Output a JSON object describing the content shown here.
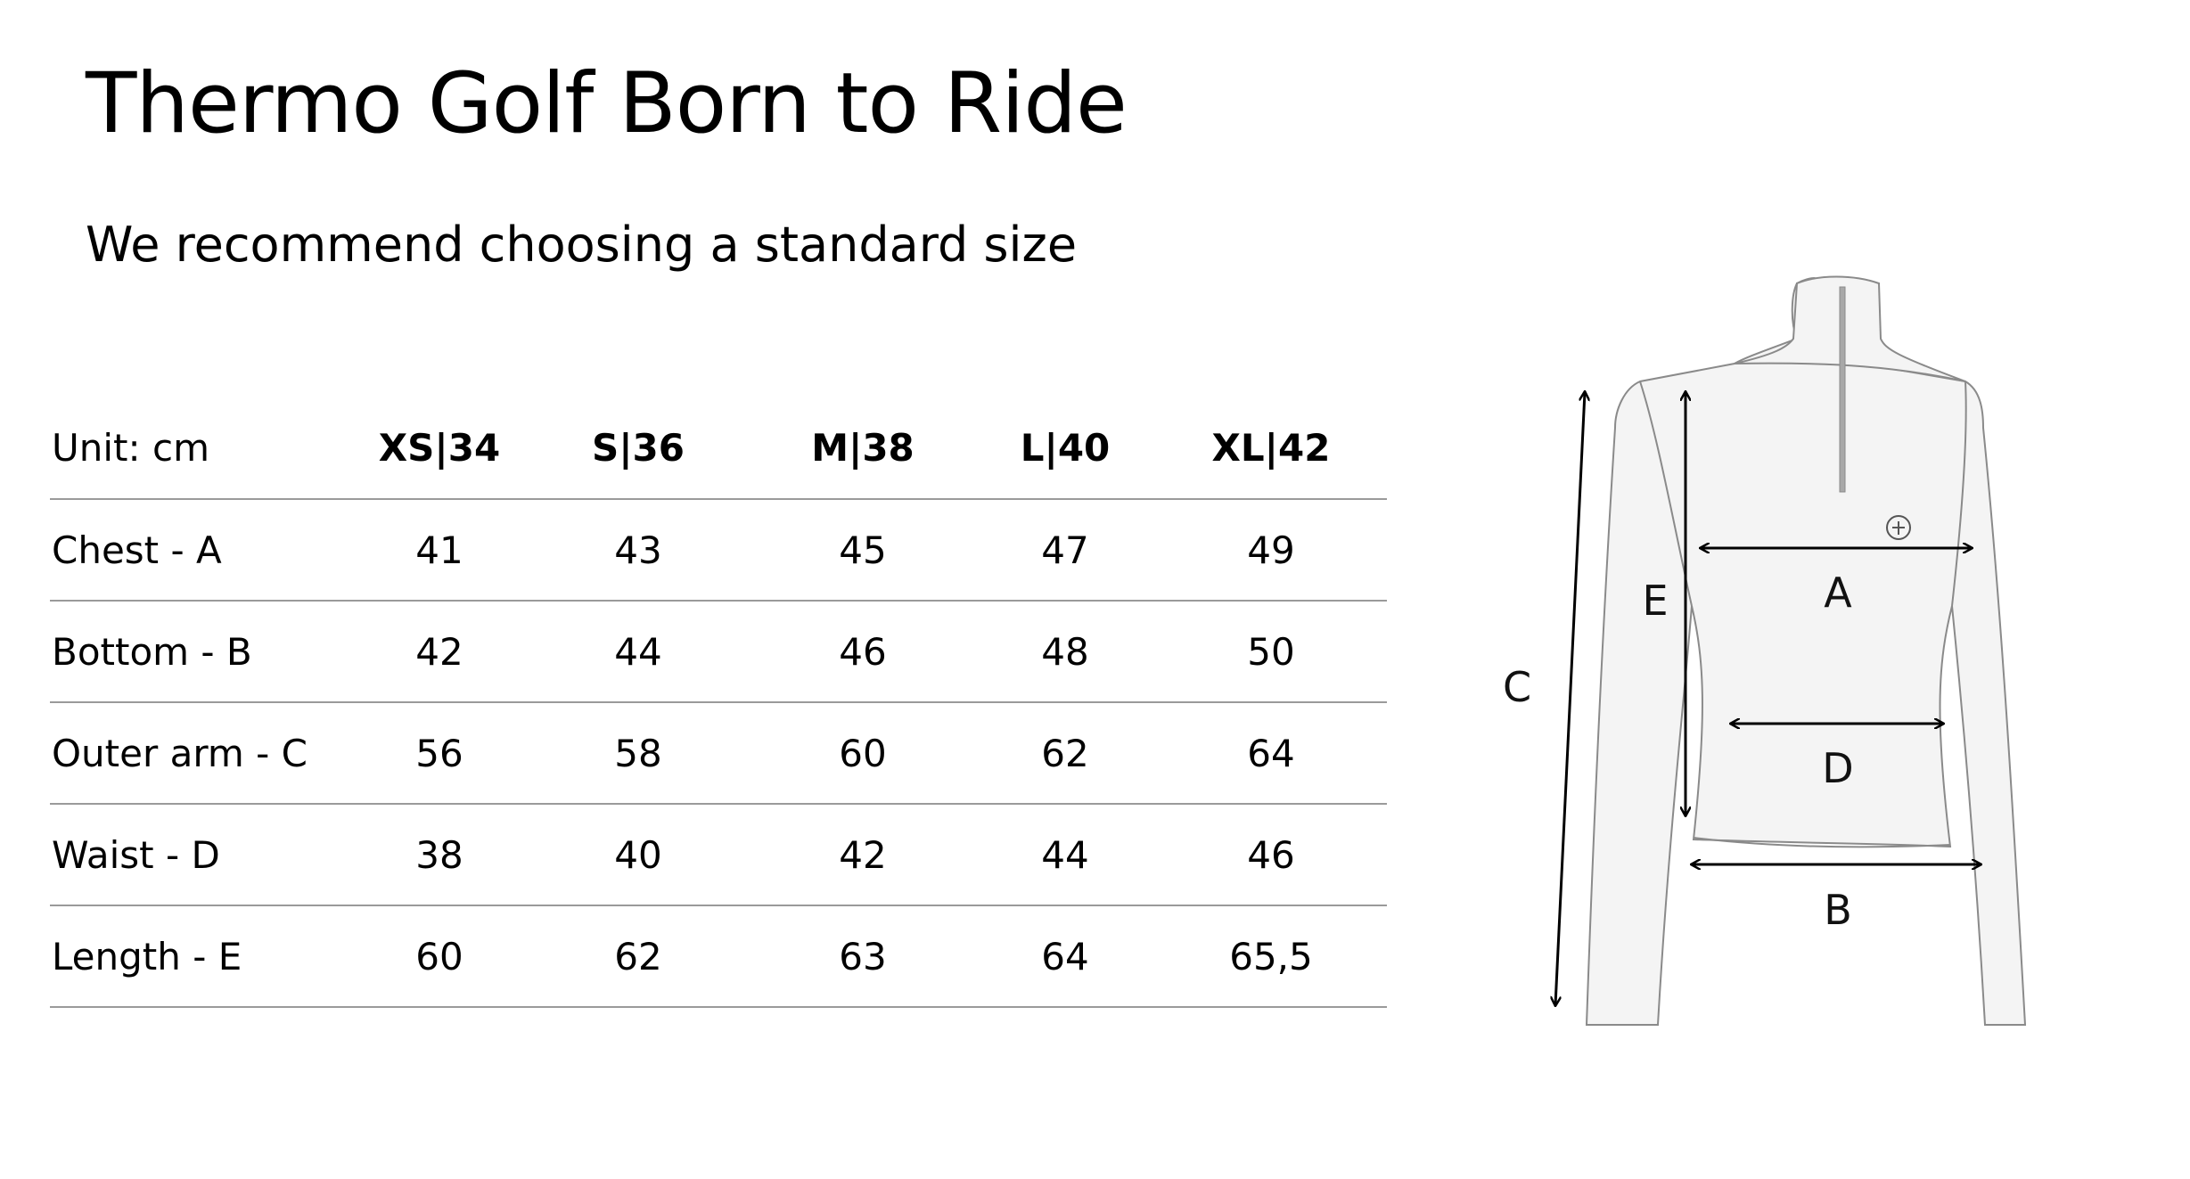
{
  "title": "Thermo Golf Born to Ride",
  "subtitle": "We recommend choosing a standard size",
  "table": {
    "unit_label": "Unit: cm",
    "sizes": [
      "XS|34",
      "S|36",
      "M|38",
      "L|40",
      "XL|42"
    ],
    "rows": [
      {
        "label": "Chest - A",
        "values": [
          "41",
          "43",
          "45",
          "47",
          "49"
        ]
      },
      {
        "label": "Bottom - B",
        "values": [
          "42",
          "44",
          "46",
          "48",
          "50"
        ]
      },
      {
        "label": "Outer arm - C",
        "values": [
          "56",
          "58",
          "60",
          "62",
          "64"
        ]
      },
      {
        "label": "Waist - D",
        "values": [
          "38",
          "40",
          "42",
          "44",
          "46"
        ]
      },
      {
        "label": "Length - E",
        "values": [
          "60",
          "62",
          "63",
          "64",
          "65,5"
        ]
      }
    ]
  },
  "diagram": {
    "labels": {
      "a": "A",
      "b": "B",
      "c": "C",
      "d": "D",
      "e": "E"
    },
    "colors": {
      "garment_fill": "#f4f4f4",
      "garment_stroke": "#8a8a8a",
      "arrow": "#000000",
      "zipper": "#a8a8a8"
    }
  }
}
